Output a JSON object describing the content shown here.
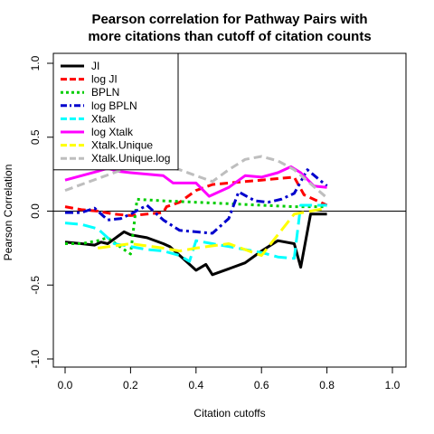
{
  "chart_data": {
    "type": "line",
    "title": [
      "Pearson correlation for Pathway Pairs with",
      "more citations than cutoff of citation counts"
    ],
    "xlabel": "Citation cutoffs",
    "ylabel": "Pearson Correlation",
    "xlim": [
      0,
      1
    ],
    "ylim": [
      -1,
      1
    ],
    "xticks": [
      "0.0",
      "0.2",
      "0.4",
      "0.6",
      "0.8",
      "1.0"
    ],
    "yticks": [
      "-1.0",
      "-0.5",
      "0.0",
      "0.5",
      "1.0"
    ],
    "reference_line": 0,
    "legend_position": "top-left",
    "series": [
      {
        "name": "JI",
        "color": "#000000",
        "dash": "solid",
        "x": [
          0.0,
          0.05,
          0.09,
          0.11,
          0.13,
          0.18,
          0.2,
          0.25,
          0.3,
          0.32,
          0.36,
          0.4,
          0.43,
          0.45,
          0.5,
          0.55,
          0.6,
          0.65,
          0.7,
          0.72,
          0.75,
          0.8
        ],
        "y": [
          -0.21,
          -0.22,
          -0.23,
          -0.21,
          -0.22,
          -0.14,
          -0.16,
          -0.18,
          -0.22,
          -0.24,
          -0.32,
          -0.4,
          -0.36,
          -0.43,
          -0.39,
          -0.35,
          -0.27,
          -0.2,
          -0.22,
          -0.38,
          -0.02,
          -0.02
        ]
      },
      {
        "name": "log JI",
        "color": "#ff0000",
        "dash": "dashed",
        "x": [
          0.0,
          0.05,
          0.1,
          0.15,
          0.2,
          0.25,
          0.3,
          0.31,
          0.35,
          0.4,
          0.45,
          0.5,
          0.55,
          0.6,
          0.65,
          0.7,
          0.73,
          0.8
        ],
        "y": [
          0.03,
          0.01,
          0.0,
          -0.02,
          -0.03,
          -0.02,
          -0.01,
          0.03,
          0.06,
          0.14,
          0.18,
          0.19,
          0.2,
          0.21,
          0.22,
          0.23,
          0.11,
          0.04
        ]
      },
      {
        "name": "BPLN",
        "color": "#00cd00",
        "dash": "dotted",
        "x": [
          0.0,
          0.05,
          0.1,
          0.13,
          0.18,
          0.2,
          0.22,
          0.3,
          0.4,
          0.5,
          0.6,
          0.7,
          0.8
        ],
        "y": [
          -0.22,
          -0.22,
          -0.2,
          -0.18,
          -0.26,
          -0.29,
          0.08,
          0.07,
          0.06,
          0.05,
          0.04,
          0.03,
          0.03
        ]
      },
      {
        "name": "log BPLN",
        "color": "#0000cd",
        "dash": "dashdot",
        "x": [
          0.0,
          0.05,
          0.09,
          0.13,
          0.17,
          0.2,
          0.25,
          0.3,
          0.35,
          0.4,
          0.45,
          0.5,
          0.53,
          0.58,
          0.62,
          0.66,
          0.7,
          0.74,
          0.8
        ],
        "y": [
          -0.01,
          -0.01,
          0.02,
          -0.06,
          -0.05,
          -0.02,
          0.04,
          -0.06,
          -0.13,
          -0.14,
          -0.15,
          -0.05,
          0.13,
          0.07,
          0.06,
          0.08,
          0.12,
          0.28,
          0.17
        ]
      },
      {
        "name": "Xtalk",
        "color": "#00ffff",
        "dash": "longdash",
        "x": [
          0.0,
          0.05,
          0.1,
          0.15,
          0.2,
          0.25,
          0.3,
          0.35,
          0.38,
          0.4,
          0.45,
          0.5,
          0.55,
          0.6,
          0.65,
          0.7,
          0.72,
          0.8
        ],
        "y": [
          -0.08,
          -0.09,
          -0.12,
          -0.22,
          -0.24,
          -0.26,
          -0.27,
          -0.3,
          -0.34,
          -0.2,
          -0.22,
          -0.24,
          -0.26,
          -0.28,
          -0.31,
          -0.32,
          0.04,
          0.04
        ]
      },
      {
        "name": "log Xtalk",
        "color": "#ff00ff",
        "dash": "solid",
        "x": [
          0.0,
          0.05,
          0.1,
          0.13,
          0.16,
          0.2,
          0.25,
          0.3,
          0.33,
          0.4,
          0.44,
          0.5,
          0.55,
          0.6,
          0.65,
          0.69,
          0.72,
          0.76,
          0.8
        ],
        "y": [
          0.21,
          0.24,
          0.27,
          0.29,
          0.27,
          0.26,
          0.25,
          0.24,
          0.19,
          0.19,
          0.1,
          0.16,
          0.24,
          0.23,
          0.26,
          0.3,
          0.26,
          0.17,
          0.16
        ]
      },
      {
        "name": "Xtalk.Unique",
        "color": "#ffff00",
        "dash": "longdash",
        "x": [
          0.1,
          0.2,
          0.3,
          0.35,
          0.4,
          0.5,
          0.6,
          0.7,
          0.8
        ],
        "y": [
          -0.25,
          -0.22,
          -0.25,
          -0.27,
          -0.25,
          -0.22,
          -0.3,
          -0.02,
          0.02
        ]
      },
      {
        "name": "Xtalk.Unique.log",
        "color": "#bebebe",
        "dash": "dashed",
        "x": [
          0.0,
          0.1,
          0.2,
          0.3,
          0.35,
          0.4,
          0.45,
          0.5,
          0.55,
          0.6,
          0.65,
          0.7,
          0.8
        ],
        "y": [
          0.14,
          0.22,
          0.3,
          0.31,
          0.28,
          0.24,
          0.2,
          0.28,
          0.35,
          0.37,
          0.34,
          0.28,
          0.09
        ]
      }
    ]
  }
}
